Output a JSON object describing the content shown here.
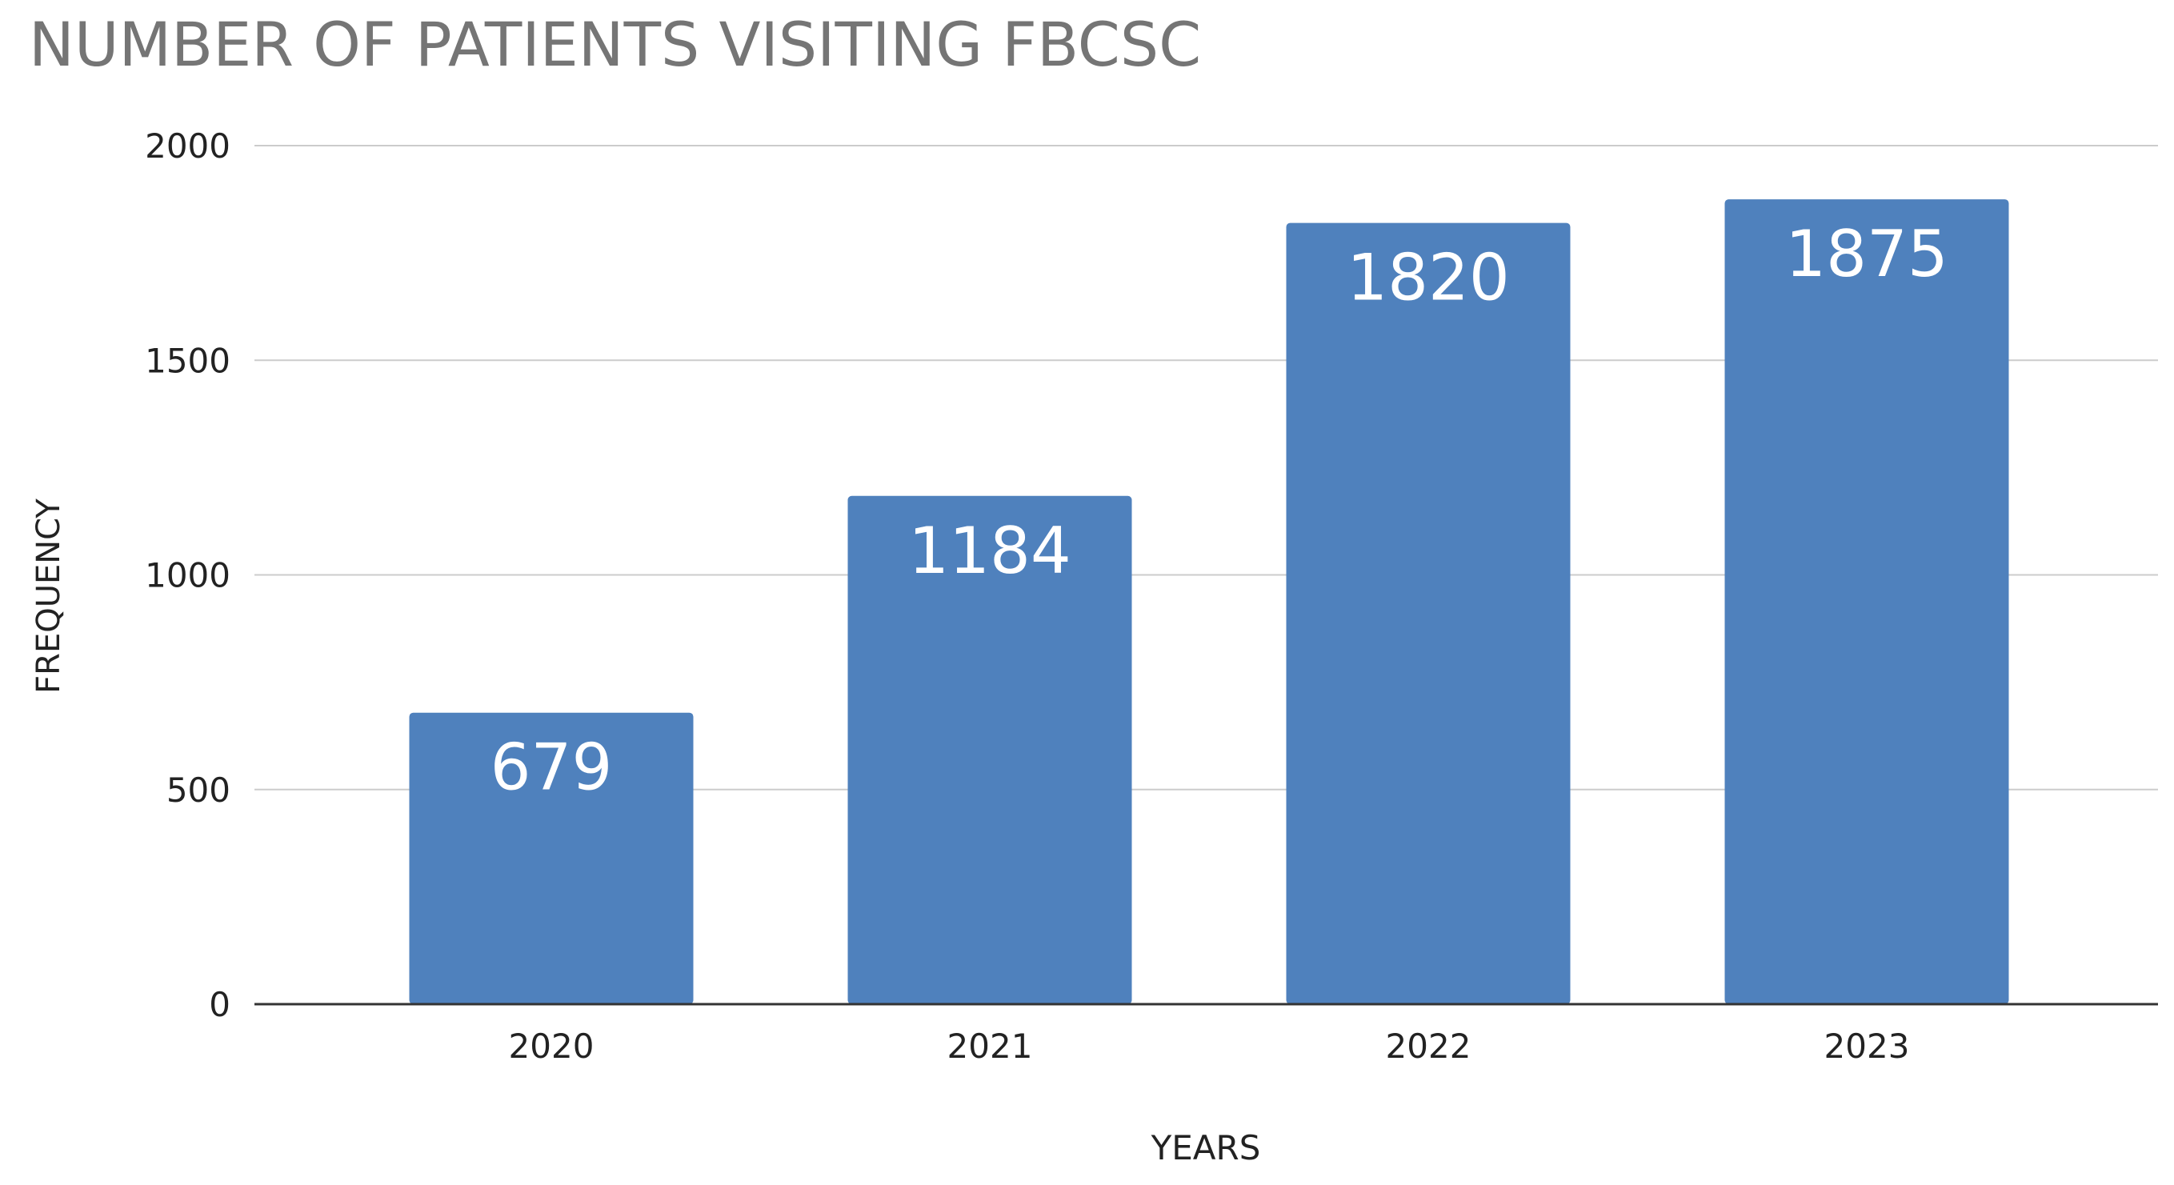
{
  "chart_data": {
    "type": "bar",
    "title": "NUMBER OF PATIENTS VISITING FBCSC",
    "xlabel": "YEARS",
    "ylabel": "FREQUENCY",
    "categories": [
      "2020",
      "2021",
      "2022",
      "2023"
    ],
    "values": [
      679,
      1184,
      1820,
      1875
    ],
    "data_labels": [
      "679",
      "1184",
      "1820",
      "1875"
    ],
    "yticks": [
      0,
      500,
      1000,
      1500,
      2000
    ],
    "ylim": [
      0,
      2000
    ],
    "grid": true,
    "legend": "none",
    "colors": {
      "bar": "#4f81bd",
      "grid": "#cccccc",
      "axis": "#333333",
      "title": "#757575",
      "text": "#222222",
      "data_label": "#ffffff"
    }
  }
}
